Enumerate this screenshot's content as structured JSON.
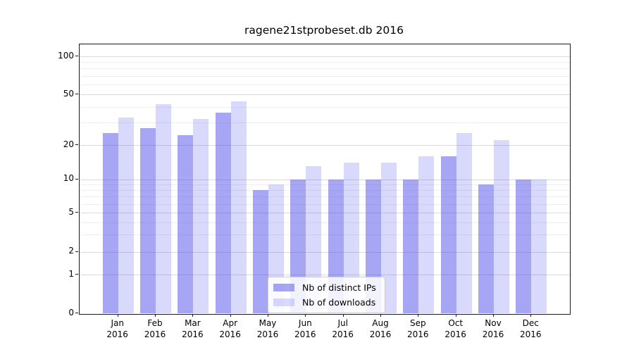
{
  "figure": {
    "title": "ragene21stprobeset.db 2016"
  },
  "legend": {
    "items": [
      {
        "label": "Nb of distinct IPs",
        "series_key": "distinct_ips"
      },
      {
        "label": "Nb of downloads",
        "series_key": "downloads"
      }
    ]
  },
  "chart_data": {
    "type": "bar",
    "title": "ragene21stprobeset.db 2016",
    "categories": [
      "Jan",
      "Feb",
      "Mar",
      "Apr",
      "May",
      "Jun",
      "Jul",
      "Aug",
      "Sep",
      "Oct",
      "Nov",
      "Dec"
    ],
    "year": "2016",
    "series": [
      {
        "name": "Nb of distinct IPs",
        "values": [
          25,
          27,
          24,
          36,
          8,
          10,
          10,
          10,
          10,
          16,
          9,
          10
        ]
      },
      {
        "name": "Nb of downloads",
        "values": [
          33,
          42,
          32,
          44,
          9,
          13,
          14,
          14,
          16,
          25,
          22,
          10
        ]
      }
    ],
    "xlabel": "",
    "ylabel": "",
    "yscale": "symlog",
    "ytick_values": [
      0,
      1,
      2,
      5,
      10,
      20,
      50,
      100
    ],
    "minor_gridline_values": [
      3,
      4,
      6,
      7,
      8,
      9,
      30,
      40,
      60,
      70,
      80,
      90
    ],
    "ylim": [
      0,
      125
    ],
    "grid": true,
    "legend_position": "lower center",
    "colors": {
      "distinct_ips": "rgba(80,80,235,0.51)",
      "downloads": "rgba(80,80,235,0.22)",
      "distinct_ips_hex": "#a9a9f5",
      "downloads_hex": "#d9d9f6",
      "grid_major": "#d9d9d9",
      "grid_minor": "#efefef",
      "spine": "#1a1a1a"
    }
  }
}
